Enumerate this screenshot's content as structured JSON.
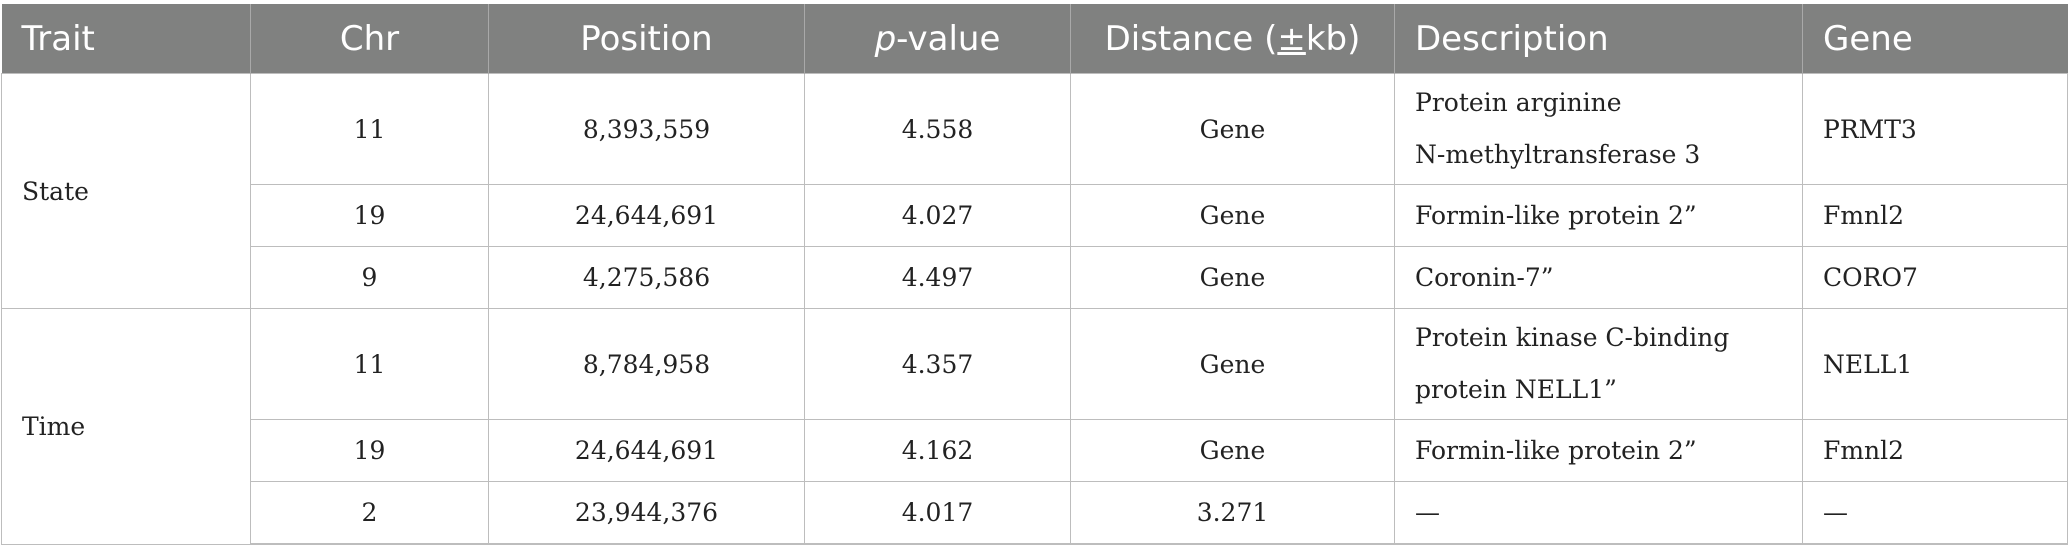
{
  "table": {
    "headers": {
      "trait": "Trait",
      "chr": "Chr",
      "position": "Position",
      "pvalue_italic": "p",
      "pvalue_rest": "-value",
      "distance_pre": "Distance (",
      "distance_pm": "±",
      "distance_post": "kb)",
      "description": "Description",
      "gene": "Gene"
    },
    "groups": [
      {
        "trait": "State",
        "rows": [
          {
            "chr": "11",
            "position": "8,393,559",
            "pvalue": "4.558",
            "distance": "Gene",
            "description_line1": "Protein arginine",
            "description_line2": "N-methyltransferase 3",
            "gene": "PRMT3"
          },
          {
            "chr": "19",
            "position": "24,644,691",
            "pvalue": "4.027",
            "distance": "Gene",
            "description": "Formin-like protein 2”",
            "gene": "Fmnl2"
          },
          {
            "chr": "9",
            "position": "4,275,586",
            "pvalue": "4.497",
            "distance": "Gene",
            "description": "Coronin-7”",
            "gene": "CORO7"
          }
        ]
      },
      {
        "trait": "Time",
        "rows": [
          {
            "chr": "11",
            "position": "8,784,958",
            "pvalue": "4.357",
            "distance": "Gene",
            "description_line1": "Protein kinase C-binding",
            "description_line2": "protein NELL1”",
            "gene": "NELL1"
          },
          {
            "chr": "19",
            "position": "24,644,691",
            "pvalue": "4.162",
            "distance": "Gene",
            "description": "Formin-like protein 2”",
            "gene": "Fmnl2"
          },
          {
            "chr": "2",
            "position": "23,944,376",
            "pvalue": "4.017",
            "distance": "3.271",
            "description": "—",
            "gene": "—"
          }
        ]
      }
    ]
  }
}
